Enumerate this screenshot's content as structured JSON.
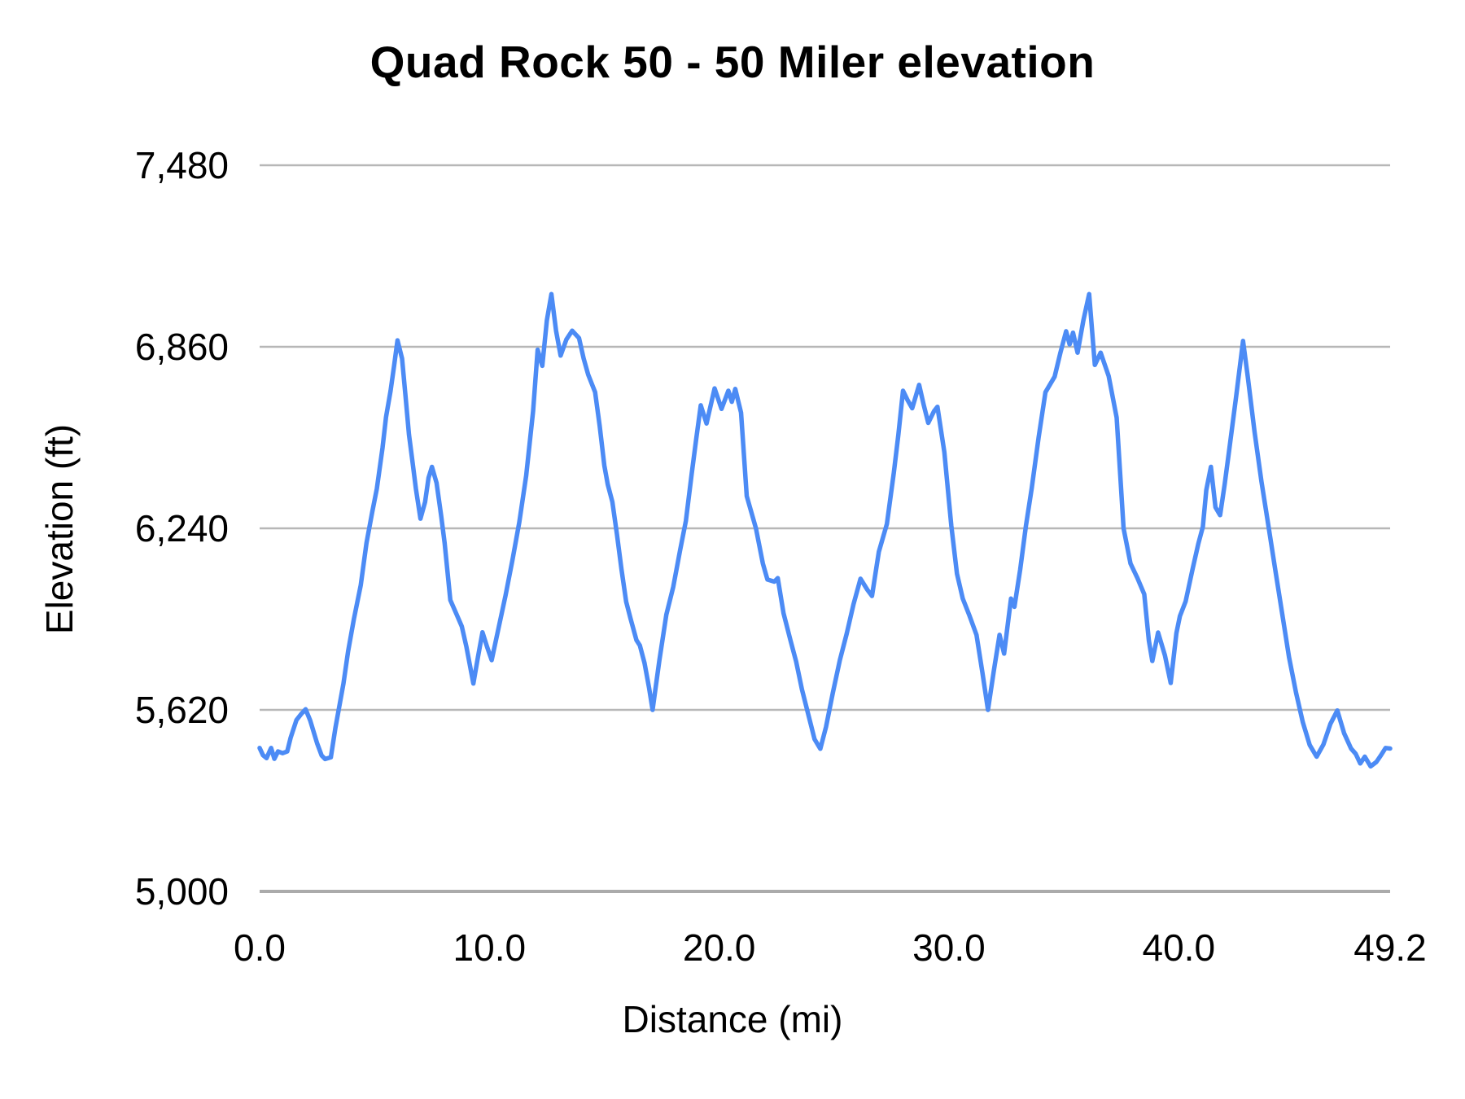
{
  "chart": {
    "title": "Quad Rock 50 - 50 Miler elevation",
    "xlabel": "Distance (mi)",
    "ylabel": "Elevation (ft)"
  },
  "chart_data": {
    "type": "line",
    "title": "Quad Rock 50 - 50 Miler elevation",
    "xlabel": "Distance (mi)",
    "ylabel": "Elevation (ft)",
    "xlim": [
      0,
      49.2
    ],
    "ylim": [
      5000,
      7480
    ],
    "grid": true,
    "legend": false,
    "x_ticks": [
      {
        "value": 0,
        "label": "0.0"
      },
      {
        "value": 10,
        "label": "10.0"
      },
      {
        "value": 20,
        "label": "20.0"
      },
      {
        "value": 30,
        "label": "30.0"
      },
      {
        "value": 40,
        "label": "40.0"
      },
      {
        "value": 49.2,
        "label": "49.2"
      }
    ],
    "y_ticks": [
      {
        "value": 5000,
        "label": "5,000"
      },
      {
        "value": 5620,
        "label": "5,620"
      },
      {
        "value": 6240,
        "label": "6,240"
      },
      {
        "value": 6860,
        "label": "6,860"
      },
      {
        "value": 7480,
        "label": "7,480"
      }
    ],
    "colors": {
      "line": "#4C8BF5",
      "grid": "#B7B7B7",
      "axis": "#ABABAB",
      "text": "#000000",
      "background": "#FFFFFF"
    },
    "series": [
      {
        "name": "elevation",
        "points": [
          [
            0.0,
            5490
          ],
          [
            0.15,
            5465
          ],
          [
            0.3,
            5455
          ],
          [
            0.5,
            5490
          ],
          [
            0.64,
            5453
          ],
          [
            0.8,
            5478
          ],
          [
            1.0,
            5472
          ],
          [
            1.2,
            5478
          ],
          [
            1.35,
            5525
          ],
          [
            1.6,
            5585
          ],
          [
            1.8,
            5605
          ],
          [
            2.0,
            5622
          ],
          [
            2.2,
            5584
          ],
          [
            2.5,
            5506
          ],
          [
            2.7,
            5464
          ],
          [
            2.85,
            5452
          ],
          [
            3.1,
            5458
          ],
          [
            3.3,
            5560
          ],
          [
            3.65,
            5710
          ],
          [
            3.85,
            5820
          ],
          [
            4.1,
            5930
          ],
          [
            4.4,
            6045
          ],
          [
            4.65,
            6190
          ],
          [
            4.9,
            6295
          ],
          [
            5.1,
            6375
          ],
          [
            5.35,
            6515
          ],
          [
            5.5,
            6620
          ],
          [
            5.7,
            6710
          ],
          [
            5.85,
            6795
          ],
          [
            6.0,
            6882
          ],
          [
            6.2,
            6820
          ],
          [
            6.35,
            6690
          ],
          [
            6.5,
            6560
          ],
          [
            6.65,
            6470
          ],
          [
            6.8,
            6375
          ],
          [
            7.0,
            6273
          ],
          [
            7.2,
            6330
          ],
          [
            7.35,
            6412
          ],
          [
            7.5,
            6450
          ],
          [
            7.7,
            6395
          ],
          [
            7.9,
            6284
          ],
          [
            8.05,
            6190
          ],
          [
            8.3,
            5995
          ],
          [
            8.55,
            5950
          ],
          [
            8.8,
            5905
          ],
          [
            9.0,
            5835
          ],
          [
            9.3,
            5710
          ],
          [
            9.5,
            5800
          ],
          [
            9.7,
            5885
          ],
          [
            9.9,
            5835
          ],
          [
            10.1,
            5790
          ],
          [
            10.4,
            5900
          ],
          [
            10.7,
            6010
          ],
          [
            11.0,
            6130
          ],
          [
            11.3,
            6260
          ],
          [
            11.6,
            6420
          ],
          [
            11.9,
            6640
          ],
          [
            12.1,
            6850
          ],
          [
            12.3,
            6795
          ],
          [
            12.5,
            6950
          ],
          [
            12.7,
            7040
          ],
          [
            12.9,
            6915
          ],
          [
            13.1,
            6830
          ],
          [
            13.35,
            6885
          ],
          [
            13.6,
            6915
          ],
          [
            13.9,
            6890
          ],
          [
            14.1,
            6820
          ],
          [
            14.3,
            6765
          ],
          [
            14.6,
            6705
          ],
          [
            14.8,
            6590
          ],
          [
            15.0,
            6455
          ],
          [
            15.15,
            6390
          ],
          [
            15.35,
            6330
          ],
          [
            15.55,
            6220
          ],
          [
            15.75,
            6100
          ],
          [
            15.95,
            5990
          ],
          [
            16.15,
            5930
          ],
          [
            16.4,
            5858
          ],
          [
            16.55,
            5840
          ],
          [
            16.75,
            5780
          ],
          [
            16.95,
            5695
          ],
          [
            17.1,
            5620
          ],
          [
            17.4,
            5790
          ],
          [
            17.7,
            5945
          ],
          [
            18.0,
            6040
          ],
          [
            18.3,
            6165
          ],
          [
            18.55,
            6265
          ],
          [
            18.8,
            6425
          ],
          [
            19.0,
            6545
          ],
          [
            19.2,
            6660
          ],
          [
            19.45,
            6598
          ],
          [
            19.8,
            6718
          ],
          [
            20.1,
            6648
          ],
          [
            20.4,
            6710
          ],
          [
            20.55,
            6672
          ],
          [
            20.7,
            6716
          ],
          [
            20.95,
            6635
          ],
          [
            21.2,
            6350
          ],
          [
            21.6,
            6240
          ],
          [
            21.9,
            6120
          ],
          [
            22.1,
            6065
          ],
          [
            22.4,
            6058
          ],
          [
            22.55,
            6070
          ],
          [
            22.8,
            5950
          ],
          [
            23.1,
            5858
          ],
          [
            23.35,
            5785
          ],
          [
            23.6,
            5690
          ],
          [
            23.9,
            5598
          ],
          [
            24.15,
            5520
          ],
          [
            24.4,
            5487
          ],
          [
            24.65,
            5562
          ],
          [
            24.95,
            5680
          ],
          [
            25.25,
            5790
          ],
          [
            25.55,
            5880
          ],
          [
            25.85,
            5982
          ],
          [
            26.15,
            6068
          ],
          [
            26.45,
            6030
          ],
          [
            26.65,
            6009
          ],
          [
            26.95,
            6160
          ],
          [
            27.3,
            6255
          ],
          [
            27.6,
            6430
          ],
          [
            27.8,
            6560
          ],
          [
            28.0,
            6710
          ],
          [
            28.2,
            6678
          ],
          [
            28.4,
            6650
          ],
          [
            28.7,
            6730
          ],
          [
            28.9,
            6662
          ],
          [
            29.1,
            6600
          ],
          [
            29.35,
            6640
          ],
          [
            29.5,
            6655
          ],
          [
            29.8,
            6500
          ],
          [
            30.1,
            6250
          ],
          [
            30.35,
            6085
          ],
          [
            30.6,
            6000
          ],
          [
            30.9,
            5940
          ],
          [
            31.2,
            5876
          ],
          [
            31.45,
            5750
          ],
          [
            31.7,
            5620
          ],
          [
            31.95,
            5752
          ],
          [
            32.2,
            5876
          ],
          [
            32.4,
            5812
          ],
          [
            32.7,
            6000
          ],
          [
            32.85,
            5972
          ],
          [
            33.1,
            6100
          ],
          [
            33.35,
            6248
          ],
          [
            33.6,
            6376
          ],
          [
            33.9,
            6550
          ],
          [
            34.2,
            6705
          ],
          [
            34.6,
            6758
          ],
          [
            34.85,
            6840
          ],
          [
            35.1,
            6913
          ],
          [
            35.25,
            6868
          ],
          [
            35.4,
            6908
          ],
          [
            35.6,
            6840
          ],
          [
            35.85,
            6950
          ],
          [
            36.1,
            7040
          ],
          [
            36.35,
            6798
          ],
          [
            36.6,
            6840
          ],
          [
            36.95,
            6760
          ],
          [
            37.3,
            6618
          ],
          [
            37.6,
            6240
          ],
          [
            37.9,
            6120
          ],
          [
            38.2,
            6070
          ],
          [
            38.5,
            6015
          ],
          [
            38.7,
            5856
          ],
          [
            38.85,
            5787
          ],
          [
            39.1,
            5884
          ],
          [
            39.4,
            5806
          ],
          [
            39.65,
            5712
          ],
          [
            39.9,
            5882
          ],
          [
            40.05,
            5940
          ],
          [
            40.3,
            5990
          ],
          [
            40.6,
            6100
          ],
          [
            40.85,
            6187
          ],
          [
            41.05,
            6245
          ],
          [
            41.2,
            6370
          ],
          [
            41.4,
            6450
          ],
          [
            41.6,
            6312
          ],
          [
            41.8,
            6285
          ],
          [
            42.0,
            6390
          ],
          [
            42.2,
            6510
          ],
          [
            42.5,
            6690
          ],
          [
            42.8,
            6880
          ],
          [
            43.0,
            6760
          ],
          [
            43.3,
            6570
          ],
          [
            43.6,
            6400
          ],
          [
            43.9,
            6250
          ],
          [
            44.2,
            6100
          ],
          [
            44.5,
            5950
          ],
          [
            44.8,
            5800
          ],
          [
            45.1,
            5680
          ],
          [
            45.4,
            5578
          ],
          [
            45.7,
            5500
          ],
          [
            46.0,
            5460
          ],
          [
            46.3,
            5502
          ],
          [
            46.6,
            5572
          ],
          [
            46.9,
            5618
          ],
          [
            47.2,
            5540
          ],
          [
            47.5,
            5488
          ],
          [
            47.7,
            5470
          ],
          [
            47.9,
            5437
          ],
          [
            48.1,
            5460
          ],
          [
            48.35,
            5427
          ],
          [
            48.6,
            5442
          ],
          [
            48.8,
            5465
          ],
          [
            49.0,
            5490
          ],
          [
            49.2,
            5488
          ]
        ]
      }
    ]
  }
}
